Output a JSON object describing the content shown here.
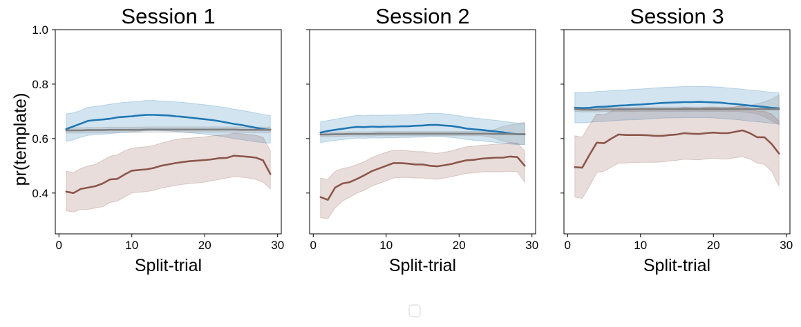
{
  "chart_data": [
    {
      "type": "line",
      "title": "Session 1",
      "xlabel": "Split-trial",
      "ylabel": "pr(template)",
      "xlim": [
        -0.5,
        30.5
      ],
      "ylim": [
        0.25,
        1.0
      ],
      "xticks": [
        "0",
        "10",
        "20",
        "30"
      ],
      "yticks": [
        "0.4",
        "0.6",
        "0.8",
        "1.0"
      ],
      "x": [
        1,
        2,
        3,
        4,
        5,
        6,
        7,
        8,
        9,
        10,
        11,
        12,
        13,
        14,
        15,
        16,
        17,
        18,
        19,
        20,
        21,
        22,
        23,
        24,
        25,
        26,
        27,
        28,
        29
      ],
      "series": [
        {
          "color": "#1f77b4",
          "values": [
            0.635,
            0.645,
            0.655,
            0.665,
            0.668,
            0.67,
            0.673,
            0.678,
            0.68,
            0.682,
            0.685,
            0.687,
            0.687,
            0.686,
            0.685,
            0.682,
            0.68,
            0.677,
            0.674,
            0.671,
            0.668,
            0.664,
            0.659,
            0.654,
            0.65,
            0.645,
            0.64,
            0.635,
            0.632
          ],
          "lower": [
            0.59,
            0.595,
            0.605,
            0.612,
            0.614,
            0.616,
            0.618,
            0.621,
            0.623,
            0.625,
            0.627,
            0.629,
            0.63,
            0.629,
            0.628,
            0.626,
            0.624,
            0.621,
            0.619,
            0.616,
            0.613,
            0.609,
            0.605,
            0.6,
            0.596,
            0.592,
            0.588,
            0.585,
            0.583
          ],
          "upper": [
            0.69,
            0.695,
            0.703,
            0.715,
            0.718,
            0.722,
            0.726,
            0.73,
            0.733,
            0.735,
            0.737,
            0.74,
            0.74,
            0.738,
            0.737,
            0.735,
            0.733,
            0.73,
            0.727,
            0.724,
            0.721,
            0.717,
            0.713,
            0.708,
            0.704,
            0.699,
            0.694,
            0.688,
            0.685
          ]
        },
        {
          "color": "#808080",
          "values": [
            0.63,
            0.63,
            0.63,
            0.631,
            0.631,
            0.631,
            0.632,
            0.632,
            0.632,
            0.632,
            0.632,
            0.633,
            0.633,
            0.633,
            0.633,
            0.633,
            0.633,
            0.633,
            0.633,
            0.633,
            0.633,
            0.633,
            0.633,
            0.633,
            0.632,
            0.632,
            0.632,
            0.632,
            0.632
          ],
          "lower": [
            0.62,
            0.62,
            0.62,
            0.621,
            0.621,
            0.621,
            0.622,
            0.622,
            0.622,
            0.622,
            0.622,
            0.623,
            0.623,
            0.623,
            0.623,
            0.623,
            0.623,
            0.623,
            0.623,
            0.623,
            0.623,
            0.623,
            0.623,
            0.623,
            0.622,
            0.622,
            0.622,
            0.622,
            0.622
          ],
          "upper": [
            0.64,
            0.64,
            0.64,
            0.641,
            0.641,
            0.641,
            0.642,
            0.642,
            0.642,
            0.642,
            0.642,
            0.643,
            0.643,
            0.643,
            0.643,
            0.643,
            0.643,
            0.643,
            0.643,
            0.643,
            0.643,
            0.643,
            0.643,
            0.643,
            0.642,
            0.642,
            0.642,
            0.642,
            0.642
          ]
        },
        {
          "color": "#8c564b",
          "values": [
            0.405,
            0.4,
            0.415,
            0.42,
            0.425,
            0.435,
            0.45,
            0.452,
            0.468,
            0.482,
            0.485,
            0.487,
            0.492,
            0.5,
            0.505,
            0.51,
            0.514,
            0.517,
            0.519,
            0.521,
            0.524,
            0.528,
            0.529,
            0.537,
            0.535,
            0.533,
            0.53,
            0.52,
            0.47
          ],
          "lower": [
            0.335,
            0.33,
            0.34,
            0.34,
            0.345,
            0.35,
            0.365,
            0.37,
            0.385,
            0.4,
            0.403,
            0.405,
            0.41,
            0.418,
            0.423,
            0.428,
            0.432,
            0.435,
            0.437,
            0.44,
            0.445,
            0.45,
            0.455,
            0.46,
            0.458,
            0.455,
            0.45,
            0.44,
            0.415
          ],
          "upper": [
            0.48,
            0.475,
            0.49,
            0.5,
            0.505,
            0.52,
            0.535,
            0.54,
            0.555,
            0.565,
            0.568,
            0.57,
            0.575,
            0.583,
            0.59,
            0.597,
            0.6,
            0.602,
            0.604,
            0.606,
            0.61,
            0.612,
            0.614,
            0.62,
            0.618,
            0.615,
            0.612,
            0.605,
            0.555
          ]
        }
      ]
    },
    {
      "type": "line",
      "title": "Session 2",
      "xlabel": "Split-trial",
      "xlim": [
        -0.5,
        30.5
      ],
      "ylim": [
        0.25,
        1.0
      ],
      "xticks": [
        "0",
        "10",
        "20",
        "30"
      ],
      "x": [
        1,
        2,
        3,
        4,
        5,
        6,
        7,
        8,
        9,
        10,
        11,
        12,
        13,
        14,
        15,
        16,
        17,
        18,
        19,
        20,
        21,
        22,
        23,
        24,
        25,
        26,
        27,
        28,
        29
      ],
      "series": [
        {
          "color": "#1f77b4",
          "values": [
            0.622,
            0.628,
            0.632,
            0.636,
            0.64,
            0.643,
            0.642,
            0.644,
            0.643,
            0.644,
            0.644,
            0.645,
            0.645,
            0.647,
            0.648,
            0.65,
            0.65,
            0.648,
            0.646,
            0.642,
            0.637,
            0.634,
            0.632,
            0.629,
            0.626,
            0.623,
            0.619,
            0.616,
            0.616
          ],
          "lower": [
            0.585,
            0.59,
            0.593,
            0.596,
            0.599,
            0.602,
            0.601,
            0.603,
            0.602,
            0.603,
            0.603,
            0.604,
            0.604,
            0.605,
            0.606,
            0.608,
            0.608,
            0.606,
            0.604,
            0.601,
            0.597,
            0.594,
            0.592,
            0.589,
            0.586,
            0.583,
            0.58,
            0.578,
            0.578
          ],
          "upper": [
            0.662,
            0.666,
            0.671,
            0.676,
            0.681,
            0.685,
            0.684,
            0.686,
            0.685,
            0.686,
            0.686,
            0.687,
            0.687,
            0.689,
            0.691,
            0.693,
            0.693,
            0.691,
            0.688,
            0.684,
            0.679,
            0.676,
            0.673,
            0.67,
            0.667,
            0.664,
            0.66,
            0.657,
            0.657
          ]
        },
        {
          "color": "#808080",
          "values": [
            0.615,
            0.615,
            0.616,
            0.616,
            0.617,
            0.617,
            0.617,
            0.617,
            0.618,
            0.618,
            0.618,
            0.618,
            0.618,
            0.618,
            0.618,
            0.618,
            0.618,
            0.618,
            0.618,
            0.618,
            0.618,
            0.618,
            0.618,
            0.618,
            0.617,
            0.617,
            0.617,
            0.616,
            0.616
          ],
          "lower": [
            0.607,
            0.607,
            0.608,
            0.608,
            0.609,
            0.609,
            0.609,
            0.609,
            0.61,
            0.61,
            0.61,
            0.61,
            0.61,
            0.61,
            0.61,
            0.61,
            0.61,
            0.61,
            0.61,
            0.61,
            0.61,
            0.61,
            0.61,
            0.608,
            0.6,
            0.59,
            0.585,
            0.58,
            0.578
          ],
          "upper": [
            0.623,
            0.623,
            0.624,
            0.624,
            0.625,
            0.625,
            0.625,
            0.625,
            0.626,
            0.626,
            0.626,
            0.626,
            0.626,
            0.626,
            0.626,
            0.626,
            0.626,
            0.626,
            0.626,
            0.626,
            0.626,
            0.626,
            0.626,
            0.628,
            0.635,
            0.645,
            0.65,
            0.655,
            0.66
          ]
        },
        {
          "color": "#8c564b",
          "values": [
            0.385,
            0.375,
            0.42,
            0.435,
            0.44,
            0.452,
            0.465,
            0.48,
            0.49,
            0.5,
            0.51,
            0.51,
            0.508,
            0.505,
            0.505,
            0.5,
            0.498,
            0.502,
            0.507,
            0.514,
            0.52,
            0.522,
            0.526,
            0.528,
            0.53,
            0.53,
            0.534,
            0.532,
            0.5
          ],
          "lower": [
            0.31,
            0.305,
            0.345,
            0.37,
            0.385,
            0.4,
            0.41,
            0.425,
            0.435,
            0.445,
            0.455,
            0.457,
            0.457,
            0.455,
            0.455,
            0.452,
            0.451,
            0.455,
            0.46,
            0.466,
            0.472,
            0.474,
            0.477,
            0.478,
            0.478,
            0.478,
            0.48,
            0.478,
            0.44
          ],
          "upper": [
            0.455,
            0.45,
            0.48,
            0.49,
            0.495,
            0.505,
            0.515,
            0.53,
            0.54,
            0.55,
            0.557,
            0.557,
            0.555,
            0.552,
            0.552,
            0.548,
            0.546,
            0.55,
            0.555,
            0.563,
            0.57,
            0.572,
            0.575,
            0.577,
            0.58,
            0.58,
            0.585,
            0.583,
            0.555
          ]
        }
      ]
    },
    {
      "type": "line",
      "title": "Session 3",
      "xlabel": "Split-trial",
      "xlim": [
        -0.5,
        30.5
      ],
      "ylim": [
        0.25,
        1.0
      ],
      "xticks": [
        "0",
        "10",
        "20",
        "30"
      ],
      "x": [
        1,
        2,
        3,
        4,
        5,
        6,
        7,
        8,
        9,
        10,
        11,
        12,
        13,
        14,
        15,
        16,
        17,
        18,
        19,
        20,
        21,
        22,
        23,
        24,
        25,
        26,
        27,
        28,
        29
      ],
      "series": [
        {
          "color": "#1f77b4",
          "values": [
            0.713,
            0.712,
            0.713,
            0.716,
            0.717,
            0.719,
            0.721,
            0.722,
            0.724,
            0.725,
            0.727,
            0.729,
            0.731,
            0.732,
            0.733,
            0.734,
            0.734,
            0.735,
            0.734,
            0.733,
            0.732,
            0.729,
            0.727,
            0.724,
            0.721,
            0.719,
            0.716,
            0.713,
            0.711
          ],
          "lower": [
            0.658,
            0.658,
            0.66,
            0.662,
            0.663,
            0.665,
            0.667,
            0.668,
            0.669,
            0.67,
            0.672,
            0.674,
            0.675,
            0.676,
            0.676,
            0.677,
            0.677,
            0.677,
            0.677,
            0.676,
            0.674,
            0.672,
            0.67,
            0.667,
            0.664,
            0.662,
            0.659,
            0.656,
            0.654
          ],
          "upper": [
            0.77,
            0.769,
            0.77,
            0.773,
            0.774,
            0.776,
            0.778,
            0.779,
            0.781,
            0.782,
            0.784,
            0.786,
            0.788,
            0.789,
            0.79,
            0.791,
            0.791,
            0.792,
            0.791,
            0.79,
            0.789,
            0.786,
            0.784,
            0.781,
            0.778,
            0.776,
            0.773,
            0.77,
            0.768
          ]
        },
        {
          "color": "#808080",
          "values": [
            0.708,
            0.706,
            0.706,
            0.706,
            0.707,
            0.707,
            0.707,
            0.707,
            0.707,
            0.708,
            0.708,
            0.708,
            0.708,
            0.708,
            0.708,
            0.708,
            0.708,
            0.708,
            0.708,
            0.708,
            0.708,
            0.708,
            0.708,
            0.708,
            0.708,
            0.708,
            0.708,
            0.708,
            0.708
          ],
          "lower": [
            0.7,
            0.698,
            0.698,
            0.698,
            0.699,
            0.699,
            0.699,
            0.699,
            0.699,
            0.7,
            0.7,
            0.7,
            0.7,
            0.7,
            0.7,
            0.7,
            0.7,
            0.7,
            0.7,
            0.7,
            0.7,
            0.7,
            0.7,
            0.698,
            0.695,
            0.69,
            0.68,
            0.665,
            0.65
          ],
          "upper": [
            0.716,
            0.714,
            0.714,
            0.714,
            0.715,
            0.715,
            0.715,
            0.715,
            0.715,
            0.716,
            0.716,
            0.716,
            0.716,
            0.716,
            0.716,
            0.716,
            0.716,
            0.716,
            0.716,
            0.716,
            0.716,
            0.716,
            0.716,
            0.718,
            0.722,
            0.728,
            0.735,
            0.745,
            0.76
          ]
        },
        {
          "color": "#8c564b",
          "values": [
            0.495,
            0.493,
            0.54,
            0.585,
            0.583,
            0.6,
            0.615,
            0.613,
            0.613,
            0.613,
            0.612,
            0.61,
            0.61,
            0.613,
            0.615,
            0.62,
            0.618,
            0.617,
            0.62,
            0.622,
            0.62,
            0.62,
            0.625,
            0.63,
            0.62,
            0.605,
            0.605,
            0.58,
            0.545
          ],
          "lower": [
            0.385,
            0.38,
            0.425,
            0.475,
            0.48,
            0.495,
            0.51,
            0.51,
            0.512,
            0.513,
            0.513,
            0.513,
            0.514,
            0.518,
            0.52,
            0.524,
            0.523,
            0.522,
            0.525,
            0.528,
            0.525,
            0.525,
            0.53,
            0.533,
            0.525,
            0.51,
            0.505,
            0.48,
            0.425
          ],
          "upper": [
            0.61,
            0.605,
            0.65,
            0.69,
            0.688,
            0.7,
            0.712,
            0.71,
            0.71,
            0.71,
            0.708,
            0.706,
            0.706,
            0.708,
            0.71,
            0.715,
            0.713,
            0.712,
            0.715,
            0.716,
            0.714,
            0.713,
            0.717,
            0.72,
            0.712,
            0.7,
            0.7,
            0.69,
            0.665
          ]
        }
      ]
    }
  ]
}
